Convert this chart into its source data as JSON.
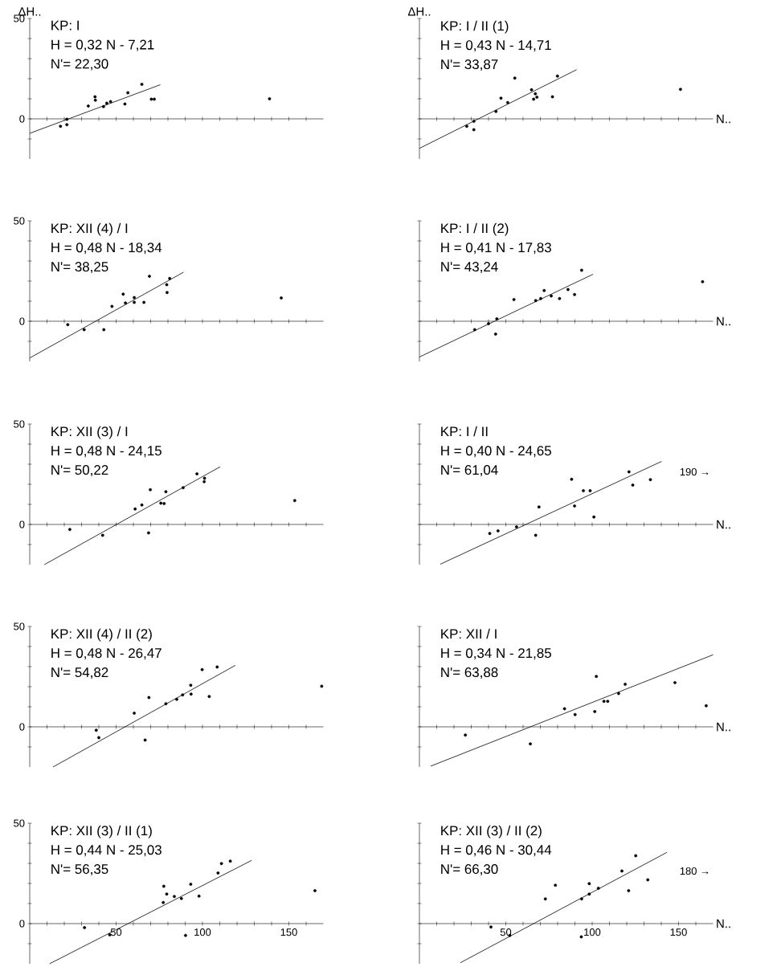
{
  "chart_data": [
    {
      "type": "scatter",
      "title": "KP: I",
      "annotations": [
        "H = 0,32 N - 7,21",
        "N'= 22,30"
      ],
      "ylabel": "ΔH..",
      "xlim": [
        0,
        170
      ],
      "ylim": [
        -20,
        50
      ],
      "xticks": [
        {
          "value": 10,
          "label": null
        },
        {
          "value": 20,
          "label": null
        },
        {
          "value": 30,
          "label": null
        },
        {
          "value": 40,
          "label": null
        },
        50,
        {
          "value": 60,
          "label": null
        },
        {
          "value": 70,
          "label": null
        },
        {
          "value": 80,
          "label": null
        },
        {
          "value": 90,
          "label": null
        },
        100,
        {
          "value": 110,
          "label": null
        },
        {
          "value": 120,
          "label": null
        },
        {
          "value": 130,
          "label": null
        },
        {
          "value": 140,
          "label": null
        },
        150,
        {
          "value": 160,
          "label": null
        }
      ],
      "yticks": [
        {
          "value": -10,
          "label": null
        },
        0,
        {
          "value": 10,
          "label": null
        },
        {
          "value": 20,
          "label": null
        },
        {
          "value": 30,
          "label": null
        },
        {
          "value": 40,
          "label": null
        },
        50
      ],
      "tick_labels": "y",
      "series": [
        {
          "marker": "circle",
          "color": "#000000",
          "x": [
            17.8,
            21.5,
            21.5,
            33.9,
            37.8,
            38.0,
            42.7,
            44.6,
            46.8,
            55.1,
            56.8,
            64.9,
            70.4,
            72.1,
            138.8
          ],
          "values": [
            -3.7,
            -2.9,
            -0.2,
            6.4,
            11.0,
            9.3,
            6.1,
            7.8,
            8.6,
            7.4,
            13.0,
            17.2,
            9.8,
            9.8,
            10.0
          ]
        },
        {
          "type": "line",
          "marker": "none",
          "color": "#000000",
          "x": [
            0,
            75.6
          ],
          "values": [
            -7.2,
            17.0
          ]
        }
      ]
    },
    {
      "type": "scatter",
      "title": "KP: I / II (1)",
      "annotations": [
        "H = 0,43 N - 14,71",
        "N'= 33,87"
      ],
      "ylabel": "ΔH..",
      "xlabel": "N..",
      "xlim": [
        0,
        170
      ],
      "ylim": [
        -20,
        50
      ],
      "xticks": [
        {
          "value": 10,
          "label": null
        },
        {
          "value": 20,
          "label": null
        },
        {
          "value": 30,
          "label": null
        },
        {
          "value": 40,
          "label": null
        },
        50,
        {
          "value": 60,
          "label": null
        },
        {
          "value": 70,
          "label": null
        },
        {
          "value": 80,
          "label": null
        },
        {
          "value": 90,
          "label": null
        },
        100,
        {
          "value": 110,
          "label": null
        },
        {
          "value": 120,
          "label": null
        },
        {
          "value": 130,
          "label": null
        },
        {
          "value": 140,
          "label": null
        },
        150,
        {
          "value": 160,
          "label": null
        }
      ],
      "yticks": [
        {
          "value": -10,
          "label": null
        },
        0,
        {
          "value": 10,
          "label": null
        },
        {
          "value": 20,
          "label": null
        },
        {
          "value": 30,
          "label": null
        },
        {
          "value": 40,
          "label": null
        },
        50
      ],
      "tick_labels": false,
      "series": [
        {
          "marker": "circle",
          "color": "#000000",
          "x": [
            27.4,
            31.5,
            31.5,
            44.3,
            47.2,
            51.1,
            55.2,
            64.9,
            66.1,
            67.1,
            68.0,
            77.0,
            79.9,
            151.1
          ],
          "values": [
            -3.7,
            -1.2,
            -5.4,
            3.7,
            10.3,
            8.1,
            20.3,
            14.5,
            9.8,
            12.5,
            10.8,
            11.0,
            21.3,
            14.7
          ]
        },
        {
          "type": "line",
          "marker": "none",
          "color": "#000000",
          "x": [
            0,
            91
          ],
          "values": [
            -14.7,
            24.5
          ]
        }
      ]
    },
    {
      "type": "scatter",
      "title": "KP: XII (4) / I",
      "annotations": [
        "H = 0,48 N - 18,34",
        "N'= 38,25"
      ],
      "xlim": [
        0,
        170
      ],
      "ylim": [
        -20,
        50
      ],
      "xticks": [
        {
          "value": 10,
          "label": null
        },
        {
          "value": 20,
          "label": null
        },
        {
          "value": 30,
          "label": null
        },
        {
          "value": 40,
          "label": null
        },
        50,
        {
          "value": 60,
          "label": null
        },
        {
          "value": 70,
          "label": null
        },
        {
          "value": 80,
          "label": null
        },
        {
          "value": 90,
          "label": null
        },
        100,
        {
          "value": 110,
          "label": null
        },
        {
          "value": 120,
          "label": null
        },
        {
          "value": 130,
          "label": null
        },
        {
          "value": 140,
          "label": null
        },
        150,
        {
          "value": 160,
          "label": null
        }
      ],
      "yticks": [
        {
          "value": -10,
          "label": null
        },
        0,
        {
          "value": 10,
          "label": null
        },
        {
          "value": 20,
          "label": null
        },
        {
          "value": 30,
          "label": null
        },
        {
          "value": 40,
          "label": null
        },
        50
      ],
      "tick_labels": "y",
      "series": [
        {
          "marker": "circle",
          "color": "#000000",
          "x": [
            22.0,
            31.5,
            42.9,
            47.6,
            54.1,
            55.4,
            60.5,
            60.5,
            66.1,
            69.3,
            79.3,
            79.5,
            81.0,
            145.6
          ],
          "values": [
            -1.7,
            -4.2,
            -4.2,
            7.4,
            13.5,
            9.1,
            11.8,
            9.4,
            9.4,
            22.4,
            18.2,
            14.3,
            21.3,
            11.6
          ]
        },
        {
          "type": "line",
          "marker": "none",
          "color": "#000000",
          "x": [
            0,
            89
          ],
          "values": [
            -18.3,
            24.4
          ]
        }
      ]
    },
    {
      "type": "scatter",
      "title": "KP: I / II (2)",
      "annotations": [
        "H = 0,41 N - 17,83",
        "N'= 43,24"
      ],
      "xlabel": "N..",
      "xlim": [
        0,
        170
      ],
      "ylim": [
        -20,
        50
      ],
      "xticks": [
        {
          "value": 10,
          "label": null
        },
        {
          "value": 20,
          "label": null
        },
        {
          "value": 30,
          "label": null
        },
        {
          "value": 40,
          "label": null
        },
        50,
        {
          "value": 60,
          "label": null
        },
        {
          "value": 70,
          "label": null
        },
        {
          "value": 80,
          "label": null
        },
        {
          "value": 90,
          "label": null
        },
        100,
        {
          "value": 110,
          "label": null
        },
        {
          "value": 120,
          "label": null
        },
        {
          "value": 130,
          "label": null
        },
        {
          "value": 140,
          "label": null
        },
        150,
        {
          "value": 160,
          "label": null
        }
      ],
      "yticks": [
        {
          "value": -10,
          "label": null
        },
        0,
        {
          "value": 10,
          "label": null
        },
        {
          "value": 20,
          "label": null
        },
        {
          "value": 30,
          "label": null
        },
        {
          "value": 40,
          "label": null
        },
        50
      ],
      "tick_labels": false,
      "series": [
        {
          "marker": "circle",
          "color": "#000000",
          "x": [
            32.0,
            40.0,
            44.1,
            44.8,
            54.7,
            67.3,
            70.2,
            72.2,
            76.3,
            81.1,
            86.0,
            89.8,
            93.9,
            163.9
          ],
          "values": [
            -4.2,
            -1.2,
            -6.4,
            1.2,
            10.8,
            10.3,
            11.3,
            15.3,
            12.6,
            11.3,
            15.8,
            13.3,
            25.4,
            19.7
          ]
        },
        {
          "type": "line",
          "marker": "none",
          "color": "#000000",
          "x": [
            0,
            100.5
          ],
          "values": [
            -17.8,
            23.4
          ]
        }
      ]
    },
    {
      "type": "scatter",
      "title": "KP: XII (3) / I",
      "annotations": [
        "H = 0,48 N - 24,15",
        "N'= 50,22"
      ],
      "xlim": [
        0,
        170
      ],
      "ylim": [
        -20,
        50
      ],
      "xticks": [
        {
          "value": 10,
          "label": null
        },
        {
          "value": 20,
          "label": null
        },
        {
          "value": 30,
          "label": null
        },
        {
          "value": 40,
          "label": null
        },
        50,
        {
          "value": 60,
          "label": null
        },
        {
          "value": 70,
          "label": null
        },
        {
          "value": 80,
          "label": null
        },
        {
          "value": 90,
          "label": null
        },
        100,
        {
          "value": 110,
          "label": null
        },
        {
          "value": 120,
          "label": null
        },
        {
          "value": 130,
          "label": null
        },
        {
          "value": 140,
          "label": null
        },
        150,
        {
          "value": 160,
          "label": null
        }
      ],
      "yticks": [
        {
          "value": -10,
          "label": null
        },
        0,
        {
          "value": 10,
          "label": null
        },
        {
          "value": 20,
          "label": null
        },
        {
          "value": 30,
          "label": null
        },
        {
          "value": 40,
          "label": null
        },
        50
      ],
      "tick_labels": "y",
      "series": [
        {
          "marker": "circle",
          "color": "#000000",
          "x": [
            23.2,
            42.2,
            61.0,
            64.9,
            68.8,
            69.8,
            75.9,
            77.8,
            78.8,
            88.8,
            96.8,
            101.0,
            101.2,
            153.4
          ],
          "values": [
            -2.5,
            -5.4,
            7.7,
            9.7,
            -4.2,
            17.3,
            10.6,
            10.4,
            16.3,
            18.3,
            25.2,
            21.3,
            23.0,
            11.9
          ]
        },
        {
          "type": "line",
          "marker": "none",
          "color": "#000000",
          "x": [
            8.5,
            110.2
          ],
          "values": [
            -20,
            28.7
          ]
        }
      ]
    },
    {
      "type": "scatter",
      "title": "KP: I / II",
      "annotations": [
        "H = 0,40 N - 24,65",
        "N'= 61,04",
        "190 →"
      ],
      "xlabel": "N..",
      "xlim": [
        0,
        170
      ],
      "ylim": [
        -20,
        50
      ],
      "xticks": [
        {
          "value": 10,
          "label": null
        },
        {
          "value": 20,
          "label": null
        },
        {
          "value": 30,
          "label": null
        },
        {
          "value": 40,
          "label": null
        },
        50,
        {
          "value": 60,
          "label": null
        },
        {
          "value": 70,
          "label": null
        },
        {
          "value": 80,
          "label": null
        },
        {
          "value": 90,
          "label": null
        },
        100,
        {
          "value": 110,
          "label": null
        },
        {
          "value": 120,
          "label": null
        },
        {
          "value": 130,
          "label": null
        },
        {
          "value": 140,
          "label": null
        },
        150,
        {
          "value": 160,
          "label": null
        }
      ],
      "yticks": [
        {
          "value": -10,
          "label": null
        },
        0,
        {
          "value": 10,
          "label": null
        },
        {
          "value": 20,
          "label": null
        },
        {
          "value": 30,
          "label": null
        },
        {
          "value": 40,
          "label": null
        },
        50
      ],
      "tick_labels": false,
      "series": [
        {
          "marker": "circle",
          "color": "#000000",
          "x": [
            40.7,
            45.5,
            56.2,
            67.3,
            69.2,
            88.1,
            89.8,
            94.9,
            98.8,
            101.0,
            121.3,
            123.5,
            133.7
          ],
          "values": [
            -4.5,
            -3.2,
            -1.2,
            -5.4,
            8.7,
            22.5,
            9.2,
            16.8,
            16.8,
            3.7,
            26.2,
            19.6,
            22.3
          ]
        },
        {
          "type": "line",
          "marker": "none",
          "color": "#000000",
          "x": [
            12.1,
            140.2
          ],
          "values": [
            -19.8,
            31.4
          ]
        }
      ]
    },
    {
      "type": "scatter",
      "title": "KP: XII (4) / II (2)",
      "annotations": [
        "H = 0,48 N - 26,47",
        "N'= 54,82"
      ],
      "xlim": [
        0,
        170
      ],
      "ylim": [
        -20,
        50
      ],
      "xticks": [
        {
          "value": 10,
          "label": null
        },
        {
          "value": 20,
          "label": null
        },
        {
          "value": 30,
          "label": null
        },
        {
          "value": 40,
          "label": null
        },
        50,
        {
          "value": 60,
          "label": null
        },
        {
          "value": 70,
          "label": null
        },
        {
          "value": 80,
          "label": null
        },
        {
          "value": 90,
          "label": null
        },
        100,
        {
          "value": 110,
          "label": null
        },
        {
          "value": 120,
          "label": null
        },
        {
          "value": 130,
          "label": null
        },
        {
          "value": 140,
          "label": null
        },
        150,
        {
          "value": 160,
          "label": null
        }
      ],
      "yticks": [
        {
          "value": -10,
          "label": null
        },
        0,
        {
          "value": 10,
          "label": null
        },
        {
          "value": 20,
          "label": null
        },
        {
          "value": 30,
          "label": null
        },
        {
          "value": 40,
          "label": null
        },
        50
      ],
      "tick_labels": "y",
      "series": [
        {
          "marker": "circle",
          "color": "#000000",
          "x": [
            38.5,
            40.0,
            60.5,
            66.8,
            69.0,
            78.8,
            85.1,
            88.5,
            93.2,
            93.4,
            99.8,
            103.9,
            108.5,
            169.0
          ],
          "values": [
            -1.7,
            -5.4,
            6.8,
            -6.6,
            14.6,
            11.5,
            13.7,
            15.9,
            20.7,
            16.3,
            28.5,
            15.1,
            29.8,
            20.2
          ]
        },
        {
          "type": "line",
          "marker": "none",
          "color": "#000000",
          "x": [
            13.5,
            119
          ],
          "values": [
            -20,
            30.6
          ]
        }
      ]
    },
    {
      "type": "scatter",
      "title": "KP: XII / I",
      "annotations": [
        "H = 0,34 N - 21,85",
        "N'= 63,88"
      ],
      "xlabel": "N..",
      "xlim": [
        0,
        170
      ],
      "ylim": [
        -20,
        50
      ],
      "xticks": [
        {
          "value": 10,
          "label": null
        },
        {
          "value": 20,
          "label": null
        },
        {
          "value": 30,
          "label": null
        },
        {
          "value": 40,
          "label": null
        },
        50,
        {
          "value": 60,
          "label": null
        },
        {
          "value": 70,
          "label": null
        },
        {
          "value": 80,
          "label": null
        },
        {
          "value": 90,
          "label": null
        },
        100,
        {
          "value": 110,
          "label": null
        },
        {
          "value": 120,
          "label": null
        },
        {
          "value": 130,
          "label": null
        },
        {
          "value": 140,
          "label": null
        },
        150,
        {
          "value": 160,
          "label": null
        }
      ],
      "yticks": [
        {
          "value": -10,
          "label": null
        },
        0,
        {
          "value": 10,
          "label": null
        },
        {
          "value": 20,
          "label": null
        },
        {
          "value": 30,
          "label": null
        },
        {
          "value": 40,
          "label": null
        },
        50
      ],
      "tick_labels": false,
      "series": [
        {
          "marker": "circle",
          "color": "#000000",
          "x": [
            26.6,
            64.2,
            84.0,
            90.1,
            101.5,
            102.4,
            106.8,
            109.0,
            115.3,
            119.1,
            147.9,
            166.0
          ],
          "values": [
            -4.1,
            -8.5,
            9.0,
            6.1,
            7.6,
            25.1,
            12.7,
            12.7,
            16.6,
            21.2,
            22.0,
            10.5
          ]
        },
        {
          "type": "line",
          "marker": "none",
          "color": "#000000",
          "x": [
            6.5,
            170
          ],
          "values": [
            -19.6,
            35.9
          ]
        }
      ]
    },
    {
      "type": "scatter",
      "title": "KP: XII (3) / II (1)",
      "annotations": [
        "H = 0,44 N - 25,03",
        "N'= 56,35"
      ],
      "xlim": [
        0,
        170
      ],
      "ylim": [
        -20,
        50
      ],
      "xticks": [
        {
          "value": 10,
          "label": null
        },
        {
          "value": 20,
          "label": null
        },
        {
          "value": 30,
          "label": null
        },
        {
          "value": 40,
          "label": null
        },
        50,
        {
          "value": 60,
          "label": null
        },
        {
          "value": 70,
          "label": null
        },
        {
          "value": 80,
          "label": null
        },
        {
          "value": 90,
          "label": null
        },
        100,
        {
          "value": 110,
          "label": null
        },
        {
          "value": 120,
          "label": null
        },
        {
          "value": 130,
          "label": null
        },
        {
          "value": 140,
          "label": null
        },
        150,
        {
          "value": 160,
          "label": null
        }
      ],
      "yticks": [
        {
          "value": -10,
          "label": null
        },
        0,
        {
          "value": 10,
          "label": null
        },
        {
          "value": 20,
          "label": null
        },
        {
          "value": 30,
          "label": null
        },
        {
          "value": 40,
          "label": null
        },
        50
      ],
      "series": [
        {
          "marker": "circle",
          "color": "#000000",
          "x": [
            31.7,
            46.3,
            77.3,
            77.6,
            79.3,
            83.7,
            87.8,
            90.2,
            93.2,
            98.0,
            109.0,
            111.0,
            116.1,
            165.1
          ],
          "values": [
            -2.0,
            -5.6,
            10.5,
            18.6,
            14.7,
            13.5,
            12.5,
            -5.9,
            19.6,
            13.7,
            25.2,
            29.9,
            31.1,
            16.4
          ]
        },
        {
          "type": "line",
          "marker": "none",
          "color": "#000000",
          "x": [
            11.5,
            128.5
          ],
          "values": [
            -20,
            31.5
          ]
        }
      ]
    },
    {
      "type": "scatter",
      "title": "KP: XII (3) / II (2)",
      "annotations": [
        "H = 0,46 N - 30,44",
        "N'= 66,30",
        "180 →"
      ],
      "xlabel": "N..",
      "xlim": [
        0,
        170
      ],
      "ylim": [
        -20,
        50
      ],
      "xticks": [
        {
          "value": 10,
          "label": null
        },
        {
          "value": 20,
          "label": null
        },
        {
          "value": 30,
          "label": null
        },
        {
          "value": 40,
          "label": null
        },
        50,
        {
          "value": 60,
          "label": null
        },
        {
          "value": 70,
          "label": null
        },
        {
          "value": 80,
          "label": null
        },
        {
          "value": 90,
          "label": null
        },
        100,
        {
          "value": 110,
          "label": null
        },
        {
          "value": 120,
          "label": null
        },
        {
          "value": 130,
          "label": null
        },
        {
          "value": 140,
          "label": null
        },
        150,
        {
          "value": 160,
          "label": null
        }
      ],
      "yticks": [
        {
          "value": -10,
          "label": null
        },
        0,
        {
          "value": 10,
          "label": null
        },
        {
          "value": 20,
          "label": null
        },
        {
          "value": 30,
          "label": null
        },
        {
          "value": 40,
          "label": null
        },
        50
      ],
      "tick_labels": "x",
      "series": [
        {
          "marker": "circle",
          "color": "#000000",
          "x": [
            41.4,
            52.3,
            72.9,
            78.7,
            93.7,
            93.9,
            98.3,
            98.3,
            103.6,
            117.2,
            121.1,
            125.2,
            132.2
          ],
          "values": [
            -1.7,
            -5.9,
            12.3,
            19.1,
            -6.6,
            12.3,
            14.7,
            19.9,
            17.6,
            26.2,
            16.4,
            33.8,
            21.8
          ]
        },
        {
          "type": "line",
          "marker": "none",
          "color": "#000000",
          "x": [
            23.7,
            143.3
          ],
          "values": [
            -19.5,
            35.5
          ]
        }
      ]
    }
  ]
}
